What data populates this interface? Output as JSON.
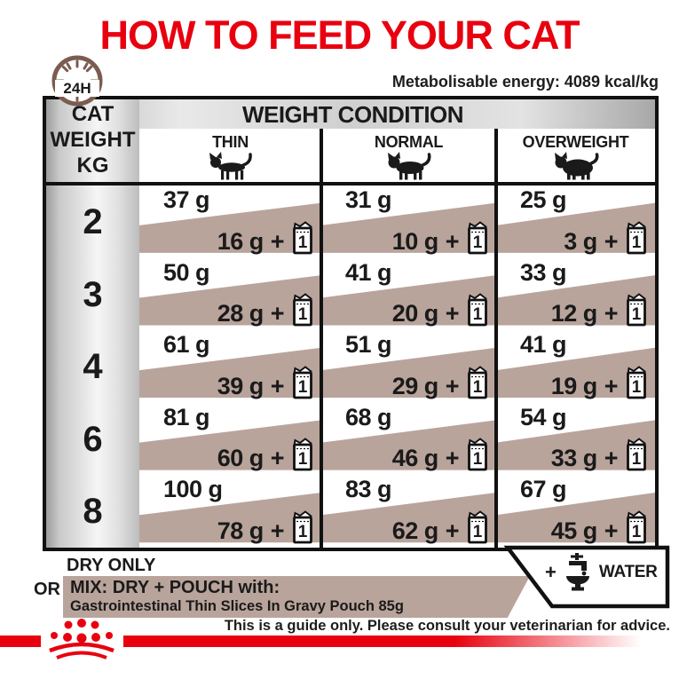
{
  "title": "HOW TO FEED YOUR CAT",
  "clock": {
    "label": "24H"
  },
  "energy_note": "Metabolisable energy: 4089 kcal/kg",
  "table": {
    "corner": {
      "line1": "CAT",
      "line2": "WEIGHT",
      "line3": "KG"
    },
    "header": "WEIGHT CONDITION",
    "conditions": [
      {
        "label": "THIN"
      },
      {
        "label": "NORMAL"
      },
      {
        "label": "OVERWEIGHT"
      }
    ],
    "plus": "+",
    "pouch_count": "1",
    "rows": [
      {
        "weight": "2",
        "cells": [
          {
            "dry": "37 g",
            "mix": "16 g"
          },
          {
            "dry": "31 g",
            "mix": "10 g"
          },
          {
            "dry": "25 g",
            "mix": "3 g"
          }
        ]
      },
      {
        "weight": "3",
        "cells": [
          {
            "dry": "50 g",
            "mix": "28 g"
          },
          {
            "dry": "41 g",
            "mix": "20 g"
          },
          {
            "dry": "33 g",
            "mix": "12 g"
          }
        ]
      },
      {
        "weight": "4",
        "cells": [
          {
            "dry": "61 g",
            "mix": "39 g"
          },
          {
            "dry": "51 g",
            "mix": "29 g"
          },
          {
            "dry": "41 g",
            "mix": "19 g"
          }
        ]
      },
      {
        "weight": "6",
        "cells": [
          {
            "dry": "81 g",
            "mix": "60 g"
          },
          {
            "dry": "68 g",
            "mix": "46 g"
          },
          {
            "dry": "54 g",
            "mix": "33 g"
          }
        ]
      },
      {
        "weight": "8",
        "cells": [
          {
            "dry": "100 g",
            "mix": "78 g"
          },
          {
            "dry": "83 g",
            "mix": "62 g"
          },
          {
            "dry": "67 g",
            "mix": "45 g"
          }
        ]
      }
    ]
  },
  "legend": {
    "dry_only": "DRY ONLY",
    "or": "OR",
    "mix_title": "MIX: DRY + POUCH with:",
    "mix_subtitle": "Gastrointestinal Thin Slices In Gravy Pouch 85g",
    "water_plus": "+",
    "water_label": "WATER"
  },
  "footer": {
    "advice": "This is a guide only. Please consult your veterinarian for advice."
  },
  "colors": {
    "accent_red": "#e8000f",
    "tan": "#b9a49c",
    "clock_brown": "#7b5c50"
  }
}
